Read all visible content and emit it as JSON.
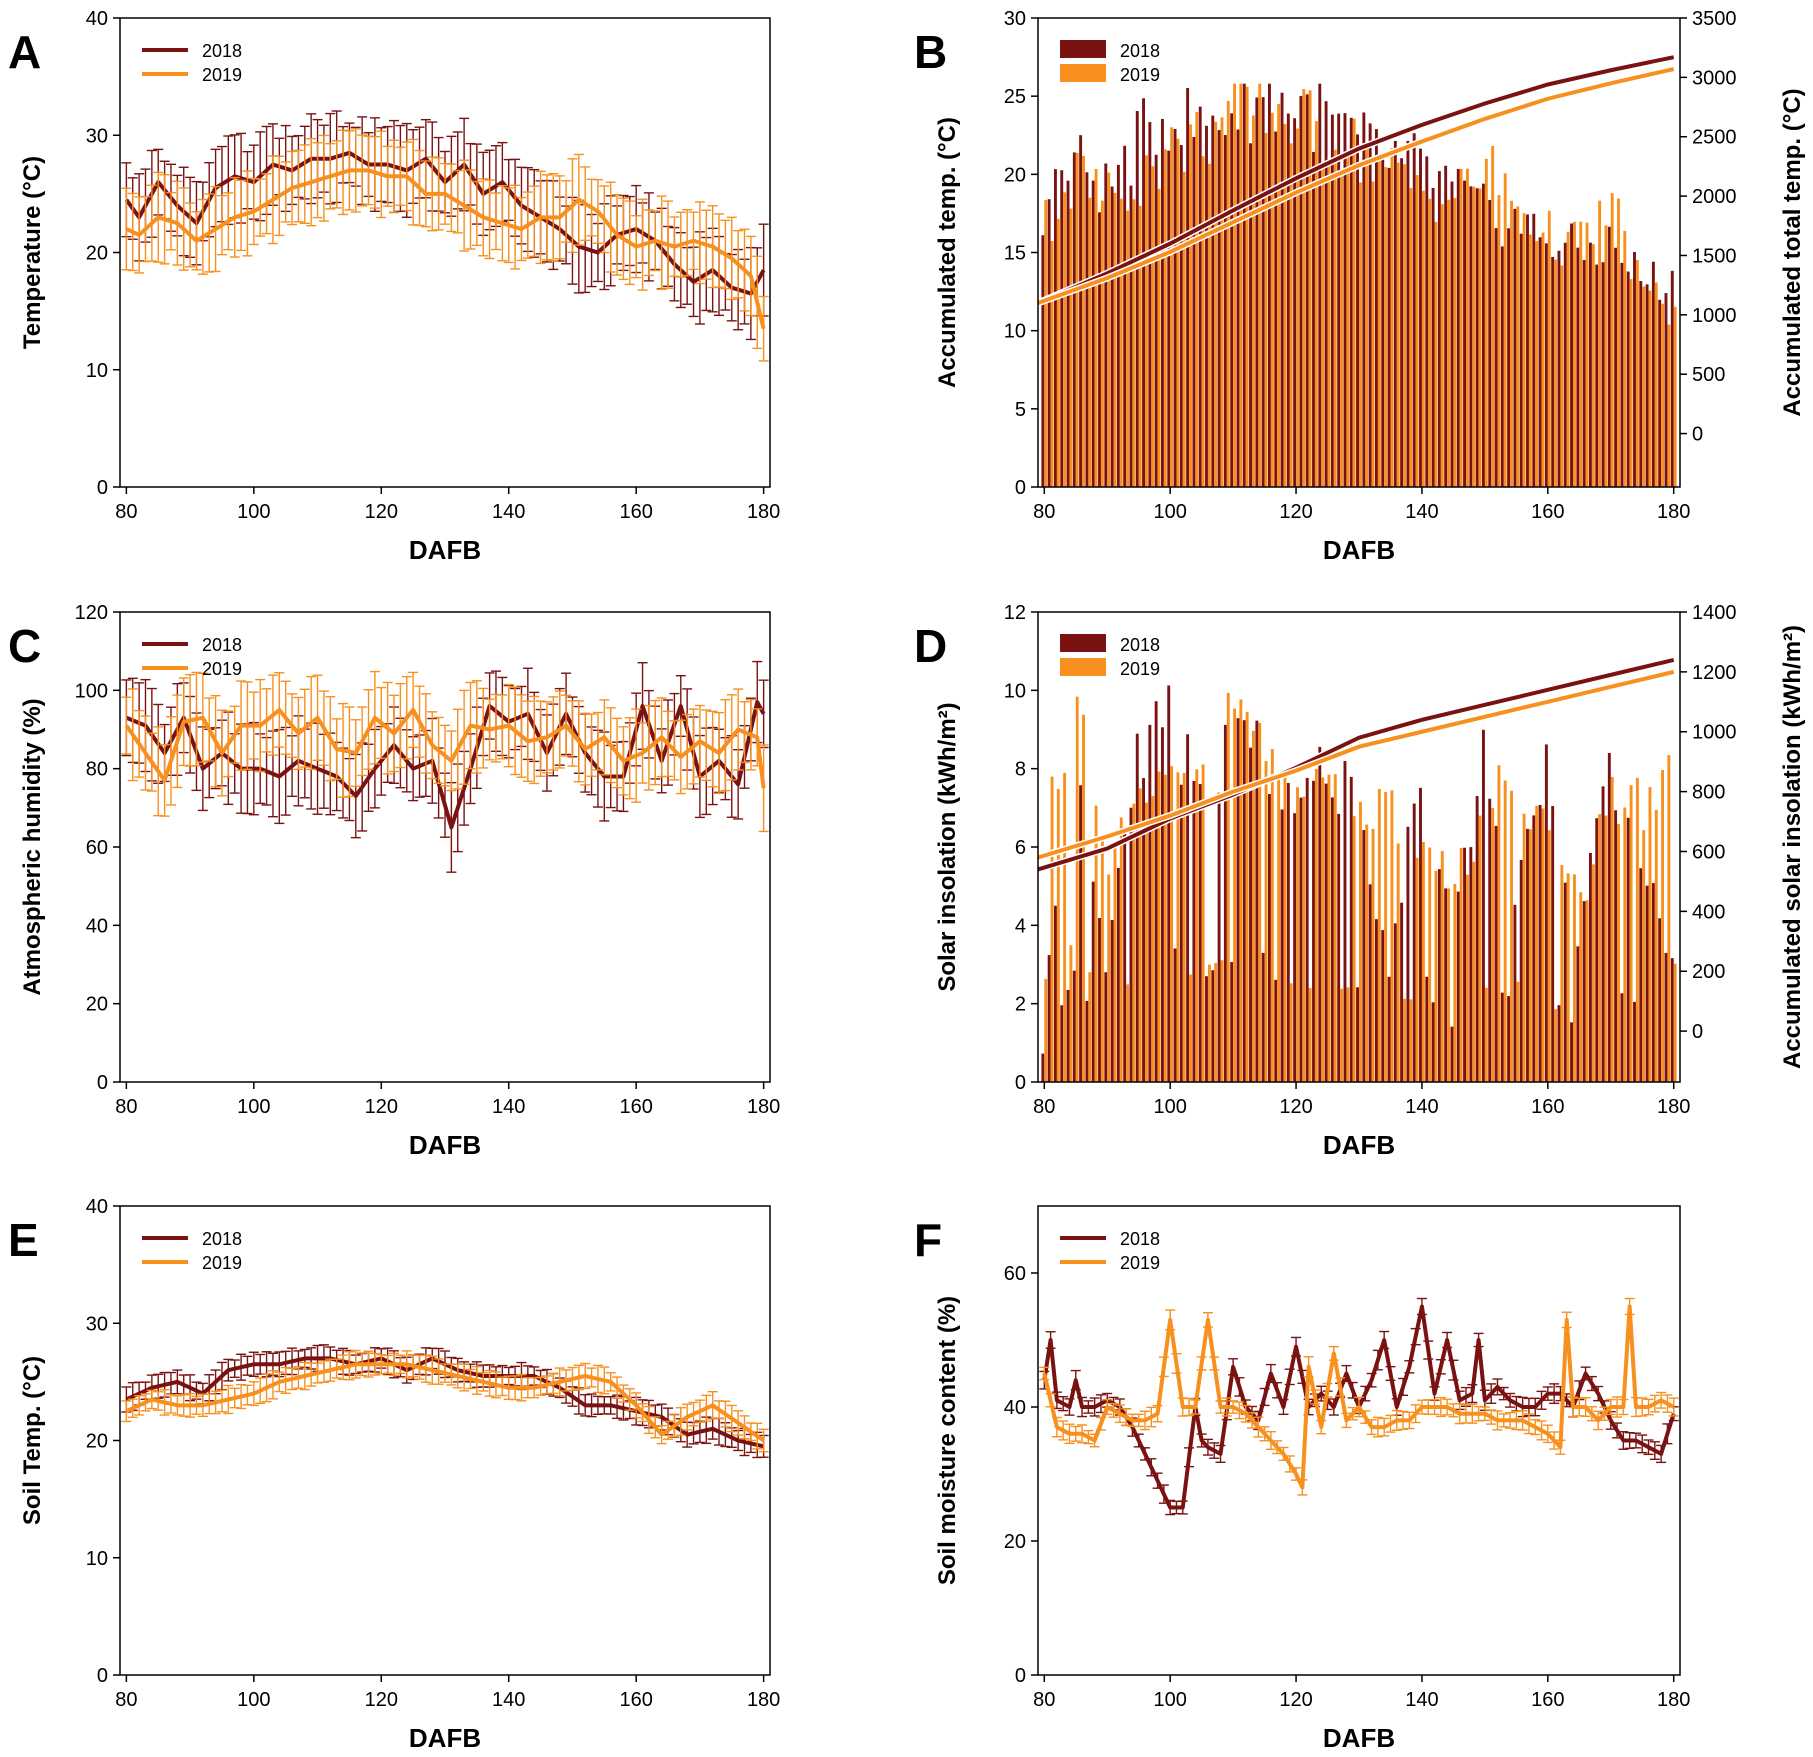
{
  "figure": {
    "colors": {
      "y2018": "#7b1212",
      "y2019": "#f7901e"
    },
    "legend": {
      "a": "2018",
      "b": "2019"
    }
  },
  "chart_data": [
    {
      "panel": "A",
      "type": "line",
      "xlabel": "DAFB",
      "ylabel": "Temperature (°C)",
      "xlim": [
        79,
        181
      ],
      "ylim": [
        0,
        40
      ],
      "xticks": [
        80,
        100,
        120,
        140,
        160,
        180
      ],
      "yticks": [
        0,
        10,
        20,
        30,
        40
      ],
      "error_bars": true,
      "err": 4,
      "series": [
        {
          "name": "2018",
          "x": [
            80,
            82,
            85,
            88,
            91,
            94,
            97,
            100,
            103,
            106,
            109,
            112,
            115,
            118,
            121,
            124,
            127,
            130,
            133,
            136,
            139,
            142,
            145,
            148,
            151,
            154,
            157,
            160,
            163,
            166,
            169,
            172,
            175,
            178,
            180
          ],
          "values": [
            24.5,
            23,
            26,
            24,
            22.5,
            25.5,
            26.5,
            26,
            27.5,
            27,
            28,
            28,
            28.5,
            27.5,
            27.5,
            27,
            28,
            26,
            27.5,
            25,
            26,
            24,
            23,
            22,
            20.5,
            20,
            21.5,
            22,
            21,
            19,
            17.5,
            18.5,
            17,
            16.5,
            18.5
          ]
        },
        {
          "name": "2019",
          "x": [
            80,
            82,
            85,
            88,
            91,
            94,
            97,
            100,
            103,
            106,
            109,
            112,
            115,
            118,
            121,
            124,
            127,
            130,
            133,
            136,
            139,
            142,
            145,
            148,
            151,
            154,
            157,
            160,
            163,
            166,
            169,
            172,
            175,
            178,
            180
          ],
          "values": [
            22,
            21.5,
            23,
            22.5,
            21,
            22,
            23,
            23.5,
            24.5,
            25.5,
            26,
            26.5,
            27,
            27,
            26.5,
            26.5,
            25,
            25,
            24,
            23,
            22.5,
            22,
            23,
            23,
            24.5,
            23.5,
            21.5,
            20.5,
            21,
            20.5,
            21,
            20.5,
            19.5,
            18,
            13.5
          ]
        }
      ]
    },
    {
      "panel": "B",
      "type": "bar+line",
      "xlabel": "DAFB",
      "ylabel": "Accumulated temp. (°C)",
      "y2label": "Accumulated total temp. (°C)",
      "xlim": [
        79,
        181
      ],
      "ylim": [
        0,
        30
      ],
      "y2lim": [
        -450,
        3500
      ],
      "xticks": [
        80,
        100,
        120,
        140,
        160,
        180
      ],
      "yticks": [
        0,
        5,
        10,
        15,
        20,
        25,
        30
      ],
      "y2ticks": [
        0,
        500,
        1000,
        1500,
        2000,
        2500,
        3000,
        3500
      ],
      "bars": [
        {
          "name": "2018",
          "x": [
            80,
            85,
            90,
            95,
            100,
            105,
            110,
            115,
            120,
            125,
            130,
            135,
            140,
            145,
            150,
            155,
            160,
            165,
            170,
            175,
            180
          ],
          "values": [
            18,
            21,
            19,
            22,
            24,
            23,
            24,
            25,
            24.5,
            23.5,
            22,
            21,
            20.5,
            19,
            17.5,
            17,
            16,
            15,
            15.5,
            13.5,
            13
          ]
        },
        {
          "name": "2019",
          "x": [
            80,
            85,
            90,
            95,
            100,
            105,
            110,
            115,
            120,
            125,
            130,
            135,
            140,
            145,
            150,
            155,
            160,
            165,
            170,
            175,
            180
          ],
          "values": [
            17,
            20,
            18.5,
            20,
            21.5,
            22.5,
            24,
            24.5,
            23.5,
            22.5,
            21.5,
            20,
            19,
            18.5,
            20.5,
            18,
            16,
            15.5,
            18,
            12.5,
            11
          ]
        }
      ],
      "lines": [
        {
          "name": "2018",
          "x": [
            79,
            90,
            100,
            110,
            120,
            130,
            140,
            150,
            160,
            170,
            180
          ],
          "values": [
            1100,
            1350,
            1600,
            1880,
            2150,
            2400,
            2600,
            2780,
            2940,
            3060,
            3170
          ]
        },
        {
          "name": "2019",
          "x": [
            79,
            90,
            100,
            110,
            120,
            130,
            140,
            150,
            160,
            170,
            180
          ],
          "values": [
            1100,
            1310,
            1530,
            1780,
            2030,
            2260,
            2460,
            2650,
            2820,
            2950,
            3070
          ]
        }
      ]
    },
    {
      "panel": "C",
      "type": "line",
      "xlabel": "DAFB",
      "ylabel": "Atmospheric humidity (%)",
      "xlim": [
        79,
        181
      ],
      "ylim": [
        0,
        120
      ],
      "xticks": [
        80,
        100,
        120,
        140,
        160,
        180
      ],
      "yticks": [
        0,
        20,
        40,
        60,
        80,
        100,
        120
      ],
      "error_bars": true,
      "err": 12,
      "series": [
        {
          "name": "2018",
          "x": [
            80,
            83,
            86,
            89,
            92,
            95,
            98,
            101,
            104,
            107,
            110,
            113,
            116,
            119,
            122,
            125,
            128,
            131,
            134,
            137,
            140,
            143,
            146,
            149,
            152,
            155,
            158,
            161,
            164,
            167,
            170,
            173,
            176,
            179,
            180
          ],
          "values": [
            93,
            91,
            84,
            93,
            80,
            84,
            80,
            80,
            78,
            82,
            80,
            78,
            73,
            80,
            86,
            80,
            82,
            65,
            80,
            96,
            92,
            94,
            84,
            94,
            84,
            78,
            78,
            96,
            82,
            96,
            78,
            82,
            76,
            97,
            94
          ]
        },
        {
          "name": "2019",
          "x": [
            80,
            83,
            86,
            89,
            92,
            95,
            98,
            101,
            104,
            107,
            110,
            113,
            116,
            119,
            122,
            125,
            128,
            131,
            134,
            137,
            140,
            143,
            146,
            149,
            152,
            155,
            158,
            161,
            164,
            167,
            170,
            173,
            176,
            179,
            180
          ],
          "values": [
            91,
            84,
            77,
            92,
            93,
            84,
            91,
            91,
            95,
            89,
            93,
            85,
            84,
            93,
            89,
            95,
            86,
            82,
            91,
            90,
            91,
            87,
            88,
            91,
            85,
            88,
            82,
            84,
            88,
            83,
            87,
            84,
            90,
            88,
            75
          ]
        }
      ]
    },
    {
      "panel": "D",
      "type": "bar+line",
      "xlabel": "DAFB",
      "ylabel": "Solar insolation (kWh/m²)",
      "y2label": "Accumulated solar insolation (kWh/m²)",
      "xlim": [
        79,
        181
      ],
      "ylim": [
        0,
        12
      ],
      "y2lim": [
        -170,
        1400
      ],
      "xticks": [
        80,
        100,
        120,
        140,
        160,
        180
      ],
      "yticks": [
        0,
        2,
        4,
        6,
        8,
        10,
        12
      ],
      "y2ticks": [
        0,
        200,
        400,
        600,
        800,
        1000,
        1200,
        1400
      ],
      "bars": [
        {
          "name": "2018",
          "x": [
            80,
            85,
            90,
            95,
            100,
            105,
            110,
            115,
            120,
            125,
            130,
            135,
            140,
            145,
            150,
            155,
            160,
            165,
            170,
            175,
            180
          ],
          "values": [
            2,
            8,
            3,
            8.5,
            9.5,
            7,
            9,
            8.5,
            7,
            8,
            7,
            3,
            8,
            4,
            8.5,
            5,
            8,
            3.5,
            8,
            6,
            3
          ]
        },
        {
          "name": "2019",
          "x": [
            80,
            85,
            90,
            95,
            100,
            105,
            110,
            115,
            120,
            125,
            130,
            135,
            140,
            145,
            150,
            155,
            160,
            165,
            170,
            175,
            180
          ],
          "values": [
            7.5,
            9.5,
            5.5,
            7.5,
            9,
            8,
            9.5,
            8,
            7.5,
            8,
            6.5,
            7,
            6,
            5,
            7,
            8,
            6,
            4.5,
            7.5,
            7,
            8
          ]
        }
      ],
      "lines": [
        {
          "name": "2018",
          "x": [
            79,
            90,
            100,
            110,
            120,
            130,
            140,
            150,
            160,
            170,
            180
          ],
          "values": [
            540,
            610,
            710,
            790,
            880,
            980,
            1040,
            1090,
            1140,
            1190,
            1240
          ]
        },
        {
          "name": "2019",
          "x": [
            79,
            90,
            100,
            110,
            120,
            130,
            140,
            150,
            160,
            170,
            180
          ],
          "values": [
            580,
            650,
            720,
            800,
            870,
            950,
            1000,
            1050,
            1100,
            1150,
            1200
          ]
        }
      ]
    },
    {
      "panel": "E",
      "type": "line",
      "xlabel": "DAFB",
      "ylabel": "Soil Temp. (°C)",
      "xlim": [
        79,
        181
      ],
      "ylim": [
        0,
        40
      ],
      "xticks": [
        80,
        100,
        120,
        140,
        160,
        180
      ],
      "yticks": [
        0,
        10,
        20,
        30,
        40
      ],
      "error_bars": true,
      "err": 1.2,
      "series": [
        {
          "name": "2018",
          "x": [
            80,
            84,
            88,
            92,
            96,
            100,
            104,
            108,
            112,
            116,
            120,
            124,
            128,
            132,
            136,
            140,
            144,
            148,
            152,
            156,
            160,
            164,
            168,
            172,
            176,
            180
          ],
          "values": [
            23.5,
            24.5,
            25,
            24,
            26,
            26.5,
            26.5,
            27,
            27,
            26.5,
            27,
            26,
            27,
            26,
            25.5,
            25.5,
            25.5,
            24.5,
            23,
            23,
            22.5,
            22,
            20.5,
            21,
            20,
            19.5
          ]
        },
        {
          "name": "2019",
          "x": [
            80,
            84,
            88,
            92,
            96,
            100,
            104,
            108,
            112,
            116,
            120,
            124,
            128,
            132,
            136,
            140,
            144,
            148,
            152,
            156,
            160,
            164,
            168,
            172,
            176,
            180
          ],
          "values": [
            22.5,
            23.5,
            23,
            23,
            23.5,
            24,
            25,
            25.5,
            26,
            26.5,
            26.5,
            26.5,
            26,
            25.5,
            25,
            24.5,
            24.5,
            25,
            25.5,
            25,
            23,
            20.5,
            22,
            23,
            21.5,
            20
          ]
        }
      ]
    },
    {
      "panel": "F",
      "type": "line",
      "xlabel": "DAFB",
      "ylabel": "Soil moisture content (%)",
      "xlim": [
        79,
        181
      ],
      "ylim": [
        0,
        70
      ],
      "xticks": [
        80,
        100,
        120,
        140,
        160,
        180
      ],
      "yticks": [
        0,
        20,
        40,
        60
      ],
      "error_bars": true,
      "err": 1.5,
      "series": [
        {
          "name": "2018",
          "x": [
            80,
            81,
            82,
            84,
            85,
            86,
            88,
            90,
            92,
            94,
            96,
            98,
            100,
            102,
            104,
            105,
            106,
            108,
            110,
            112,
            114,
            116,
            118,
            120,
            122,
            124,
            126,
            128,
            130,
            132,
            134,
            136,
            138,
            140,
            142,
            144,
            146,
            148,
            149,
            150,
            152,
            154,
            156,
            158,
            160,
            162,
            164,
            166,
            168,
            170,
            172,
            174,
            176,
            178,
            180
          ],
          "values": [
            44,
            50,
            41,
            40,
            44,
            40,
            40,
            41,
            40,
            37,
            33,
            29,
            25,
            25,
            40,
            35,
            34,
            33,
            46,
            40,
            38,
            45,
            40,
            49,
            40,
            42,
            40,
            45,
            40,
            44,
            50,
            40,
            46,
            55,
            42,
            50,
            41,
            42,
            50,
            41,
            43,
            41,
            40,
            40,
            42,
            42,
            40,
            45,
            42,
            38,
            35,
            35,
            34,
            33,
            39
          ]
        },
        {
          "name": "2019",
          "x": [
            80,
            82,
            84,
            86,
            88,
            90,
            92,
            94,
            96,
            98,
            100,
            102,
            104,
            106,
            108,
            110,
            112,
            114,
            116,
            118,
            120,
            121,
            122,
            124,
            126,
            128,
            130,
            132,
            134,
            136,
            138,
            140,
            142,
            144,
            146,
            148,
            150,
            152,
            154,
            156,
            158,
            160,
            162,
            163,
            164,
            166,
            168,
            170,
            172,
            173,
            174,
            176,
            178,
            180
          ],
          "values": [
            45,
            37,
            36,
            36,
            35,
            40,
            39,
            38,
            38,
            39,
            53,
            40,
            40,
            53,
            40,
            40,
            39,
            37,
            35,
            33,
            30,
            28,
            46,
            37,
            48,
            38,
            40,
            37,
            37,
            38,
            38,
            40,
            40,
            40,
            39,
            39,
            39,
            38,
            38,
            38,
            37,
            36,
            34,
            53,
            40,
            40,
            38,
            40,
            40,
            55,
            40,
            40,
            41,
            40
          ]
        }
      ]
    }
  ]
}
